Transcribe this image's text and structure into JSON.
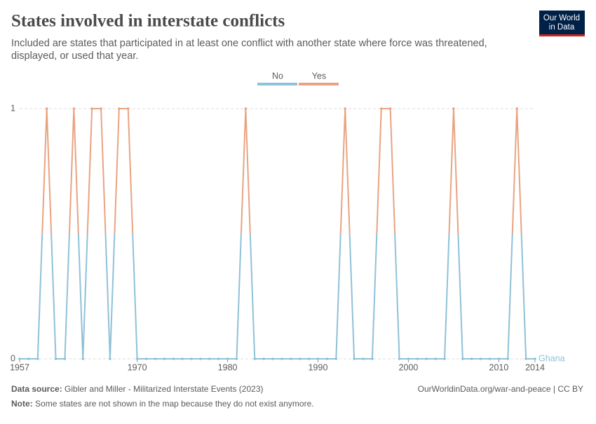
{
  "header": {
    "title": "States involved in interstate conflicts",
    "subtitle_lines": [
      "Included are states that participated in at least one conflict with another state where force was threatened,",
      "displayed, or used that year."
    ],
    "logo_lines": [
      "Our World",
      "in Data"
    ]
  },
  "chart_data": {
    "type": "line",
    "legend": [
      {
        "label": "No",
        "color": "#8fc1d8"
      },
      {
        "label": "Yes",
        "color": "#e9a381"
      }
    ],
    "x": [
      1957,
      1958,
      1959,
      1960,
      1961,
      1962,
      1963,
      1964,
      1965,
      1966,
      1967,
      1968,
      1969,
      1970,
      1971,
      1972,
      1973,
      1974,
      1975,
      1976,
      1977,
      1978,
      1979,
      1980,
      1981,
      1982,
      1983,
      1984,
      1985,
      1986,
      1987,
      1988,
      1989,
      1990,
      1991,
      1992,
      1993,
      1994,
      1995,
      1996,
      1997,
      1998,
      1999,
      2000,
      2001,
      2002,
      2003,
      2004,
      2005,
      2006,
      2007,
      2008,
      2009,
      2010,
      2011,
      2012,
      2013,
      2014
    ],
    "series": [
      {
        "name": "Ghana",
        "values": [
          0,
          0,
          0,
          1,
          0,
          0,
          1,
          0,
          1,
          1,
          0,
          1,
          1,
          0,
          0,
          0,
          0,
          0,
          0,
          0,
          0,
          0,
          0,
          0,
          0,
          1,
          0,
          0,
          0,
          0,
          0,
          0,
          0,
          0,
          0,
          0,
          1,
          0,
          0,
          0,
          1,
          1,
          0,
          0,
          0,
          0,
          0,
          0,
          1,
          0,
          0,
          0,
          0,
          0,
          0,
          1,
          0,
          0
        ]
      }
    ],
    "xlim": [
      1957,
      2014
    ],
    "xticks": [
      1957,
      1970,
      1980,
      1990,
      2000,
      2010,
      2014
    ],
    "ylim": [
      0,
      1
    ],
    "yticks": [
      0,
      1
    ],
    "grid": true
  },
  "footer": {
    "source_label": "Data source:",
    "source": "Gibler and Miller - Militarized Interstate Events (2023)",
    "url": "OurWorldinData.org/war-and-peace | CC BY",
    "note_label": "Note:",
    "note": "Some states are not shown in the map because they do not exist anymore."
  }
}
